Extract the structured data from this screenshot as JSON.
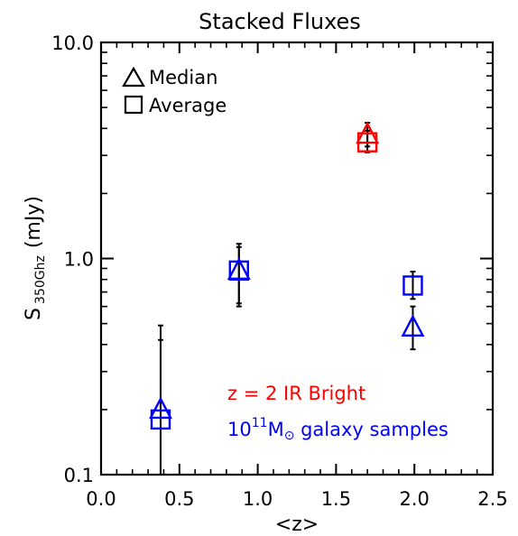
{
  "chart_data": {
    "type": "scatter",
    "title": "Stacked Fluxes",
    "xlabel": "<z>",
    "ylabel": {
      "main": "S",
      "subscript": "350Ghz",
      "unit": "(mJy)"
    },
    "xlim": [
      0.0,
      2.5
    ],
    "ylim": [
      0.1,
      10.0
    ],
    "yscale": "log",
    "xticks": [
      "0.0",
      "0.5",
      "1.0",
      "1.5",
      "2.0",
      "2.5"
    ],
    "yticks": [
      "0.1",
      "1.0",
      "10.0"
    ],
    "grid": false,
    "legend": {
      "placement": "top-left",
      "entries": [
        {
          "marker": "triangle",
          "label": "Median"
        },
        {
          "marker": "square",
          "label": "Average"
        }
      ]
    },
    "annotations": [
      {
        "text": "z = 2 IR Bright",
        "color": "#ff0000"
      },
      {
        "base": "10",
        "sup": "11",
        "mid": "M",
        "sub": "⊙",
        "rest": " galaxy samples",
        "color": "#0000ff"
      }
    ],
    "series": [
      {
        "group": "z = 2 IR Bright",
        "color": "#ff0000",
        "points": [
          {
            "marker": "triangle",
            "x": 1.7,
            "y": 3.75,
            "ylo": 3.3,
            "yhi": 4.25
          },
          {
            "marker": "square",
            "x": 1.7,
            "y": 3.45,
            "ylo": 3.1,
            "yhi": 3.9
          }
        ]
      },
      {
        "group": "galaxy samples",
        "color": "#0000ff",
        "points": [
          {
            "marker": "triangle",
            "x": 0.38,
            "y": 0.2,
            "ylo": 0.1,
            "yhi": 0.42
          },
          {
            "marker": "square",
            "x": 0.38,
            "y": 0.18,
            "ylo": 0.1,
            "yhi": 0.49
          },
          {
            "marker": "triangle",
            "x": 0.88,
            "y": 0.88,
            "ylo": 0.62,
            "yhi": 1.13
          },
          {
            "marker": "square",
            "x": 0.88,
            "y": 0.88,
            "ylo": 0.6,
            "yhi": 1.17
          },
          {
            "marker": "triangle",
            "x": 1.99,
            "y": 0.48,
            "ylo": 0.38,
            "yhi": 0.6
          },
          {
            "marker": "square",
            "x": 1.99,
            "y": 0.75,
            "ylo": 0.65,
            "yhi": 0.87
          }
        ]
      }
    ]
  }
}
